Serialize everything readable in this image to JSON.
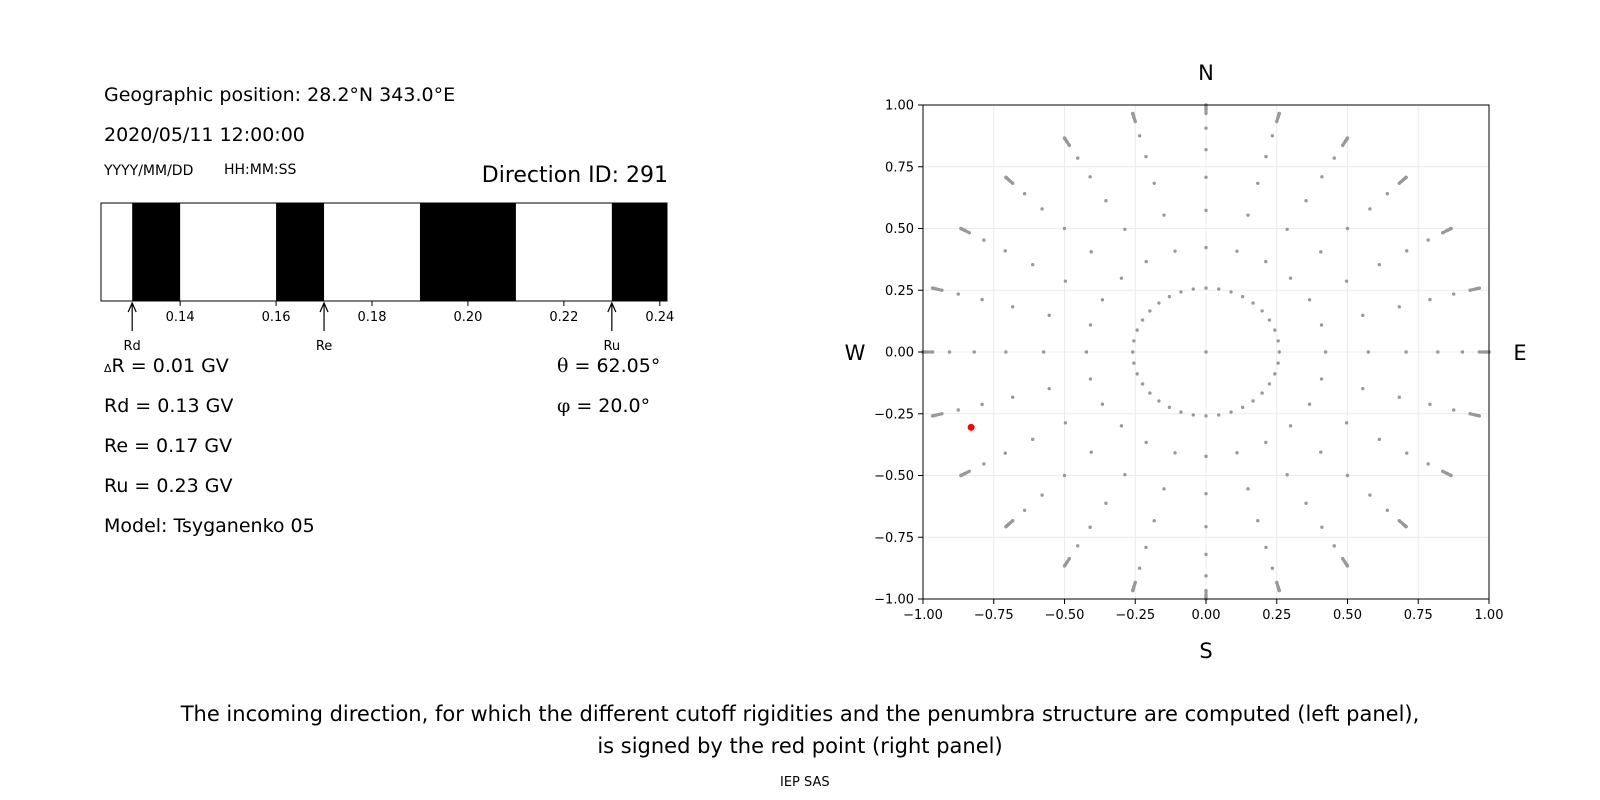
{
  "left_panel": {
    "geo_position": "Geographic position: 28.2°N 343.0°E",
    "datetime": "2020/05/11 12:00:00",
    "date_format": "YYYY/MM/DD",
    "time_format": "HH:MM:SS",
    "direction_id": "Direction ID: 291",
    "delta_r_symbol": "Δ",
    "delta_r": "R = 0.01 GV",
    "rd": "Rd = 0.13 GV",
    "re": "Re = 0.17 GV",
    "ru": "Ru = 0.23 GV",
    "model": "Model: Tsyganenko 05",
    "theta_symbol": "θ",
    "theta": " = 62.05°",
    "phi_symbol": "φ",
    "phi": " = 20.0°",
    "penumbra": {
      "x_range": [
        0.1235,
        0.2415
      ],
      "ticks": [
        0.14,
        0.16,
        0.18,
        0.2,
        0.22,
        0.24
      ],
      "tick_labels": [
        "0.14",
        "0.16",
        "0.18",
        "0.20",
        "0.22",
        "0.24"
      ],
      "forbidden_bands": [
        [
          0.13,
          0.14
        ],
        [
          0.16,
          0.17
        ],
        [
          0.19,
          0.21
        ],
        [
          0.23,
          0.2415
        ]
      ],
      "markers": [
        {
          "label": "Rd",
          "value": 0.13
        },
        {
          "label": "Re",
          "value": 0.17
        },
        {
          "label": "Ru",
          "value": 0.23
        }
      ]
    }
  },
  "chart_data": {
    "type": "scatter",
    "xlim": [
      -1.0,
      1.0
    ],
    "ylim": [
      -1.0,
      1.0
    ],
    "xticks": [
      "−1.00",
      "−0.75",
      "−0.50",
      "−0.25",
      "0.00",
      "0.25",
      "0.50",
      "0.75",
      "1.00"
    ],
    "yticks": [
      "1.00",
      "0.75",
      "0.50",
      "0.25",
      "0.00",
      "−0.25",
      "−0.50",
      "−0.75",
      "−1.00"
    ],
    "grid": true,
    "directions": {
      "north": "N",
      "south": "S",
      "west": "W",
      "east": "E"
    },
    "point_color": "#999999",
    "highlight_color": "#ff0000",
    "highlight_point": {
      "x": -0.83,
      "y": -0.305
    },
    "grid_pattern": {
      "center": [
        0,
        0
      ],
      "ring_angles_deg": [
        15,
        25,
        35,
        45,
        55,
        65,
        75,
        80,
        85,
        90
      ],
      "azimuth_step_deg": 15,
      "inner_ring_azimuth_step_deg": 10
    }
  },
  "caption": {
    "line1": "The incoming direction, for which the different cutoff rigidities and the penumbra structure are computed (left panel),",
    "line2": "is signed by the red point (right panel)"
  },
  "footer": "IEP SAS"
}
